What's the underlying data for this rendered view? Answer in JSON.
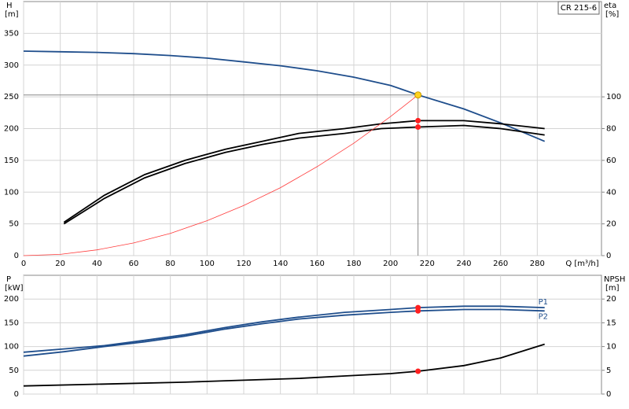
{
  "chart_data": [
    {
      "type": "line",
      "title": "CR 215-6",
      "ylabel": "H",
      "yunit": "[m]",
      "y2label": "eta",
      "y2unit": "[%]",
      "xlabel": "Q [m³/h]",
      "xlim": [
        0,
        315
      ],
      "xticks": [
        0,
        20,
        40,
        60,
        80,
        100,
        120,
        140,
        160,
        180,
        200,
        220,
        240,
        260,
        280
      ],
      "ylim": [
        0,
        400
      ],
      "yticks": [
        0,
        50,
        100,
        150,
        200,
        250,
        300,
        350
      ],
      "y2lim": [
        0,
        160
      ],
      "y2ticks": [
        0,
        20,
        40,
        60,
        80,
        100
      ],
      "grid": true,
      "duty_point": {
        "x": 215,
        "y": 253
      },
      "series": [
        {
          "color": "#1f4e8c",
          "x": [
            0,
            20,
            40,
            60,
            80,
            100,
            120,
            140,
            160,
            180,
            200,
            215,
            240,
            260,
            284
          ],
          "values": [
            322,
            321,
            320,
            318,
            315,
            311,
            305,
            299,
            291,
            281,
            268,
            253,
            231,
            209,
            180
          ]
        },
        {
          "color": "#000000",
          "axis": "y2",
          "x": [
            22,
            44,
            66,
            88,
            110,
            130,
            150,
            175,
            195,
            215,
            240,
            260,
            284
          ],
          "values": [
            21,
            38,
            51,
            60,
            67,
            72,
            77,
            80,
            83,
            85,
            85,
            83,
            80
          ]
        },
        {
          "color": "#000000",
          "axis": "y2",
          "x": [
            22,
            44,
            66,
            88,
            110,
            130,
            150,
            175,
            195,
            215,
            240,
            260,
            284
          ],
          "values": [
            20,
            36,
            49,
            58,
            65,
            70,
            74,
            77,
            80,
            81,
            82,
            80,
            76
          ]
        },
        {
          "color": "#ff3b3b",
          "x": [
            0,
            20,
            40,
            60,
            80,
            100,
            120,
            140,
            160,
            180,
            200,
            215
          ],
          "values": [
            0,
            2,
            9,
            20,
            35,
            55,
            79,
            107,
            140,
            177,
            219,
            253
          ]
        }
      ]
    },
    {
      "type": "line",
      "ylabel": "P",
      "yunit": "[kW]",
      "y2label": "NPSH",
      "y2unit": "[m]",
      "xlim": [
        0,
        315
      ],
      "xticks": [
        0,
        20,
        40,
        60,
        80,
        100,
        120,
        140,
        160,
        180,
        200,
        220,
        240,
        260,
        280
      ],
      "xtick_labels": false,
      "ylim": [
        0,
        250
      ],
      "yticks": [
        0,
        50,
        100,
        150,
        200
      ],
      "y2lim": [
        0,
        25
      ],
      "y2ticks": [
        0,
        5,
        10,
        15,
        20
      ],
      "grid": true,
      "duty_point": {
        "x": 215
      },
      "series": [
        {
          "name": "P1",
          "color": "#1f4e8c",
          "x": [
            0,
            22,
            44,
            66,
            88,
            110,
            130,
            150,
            175,
            200,
            215,
            240,
            260,
            284
          ],
          "values": [
            88,
            95,
            102,
            113,
            125,
            140,
            152,
            162,
            172,
            178,
            182,
            185,
            185,
            182
          ]
        },
        {
          "name": "P2",
          "color": "#1f4e8c",
          "x": [
            0,
            22,
            44,
            66,
            88,
            110,
            130,
            150,
            175,
            200,
            215,
            240,
            260,
            284
          ],
          "values": [
            80,
            89,
            100,
            110,
            122,
            137,
            148,
            158,
            166,
            172,
            175,
            178,
            178,
            175
          ]
        },
        {
          "color": "#000000",
          "axis": "y2",
          "x": [
            0,
            44,
            88,
            110,
            150,
            175,
            200,
            215,
            240,
            260,
            284
          ],
          "values": [
            1.7,
            2.1,
            2.5,
            2.8,
            3.3,
            3.8,
            4.3,
            4.8,
            6.0,
            7.6,
            10.5
          ]
        }
      ]
    }
  ]
}
